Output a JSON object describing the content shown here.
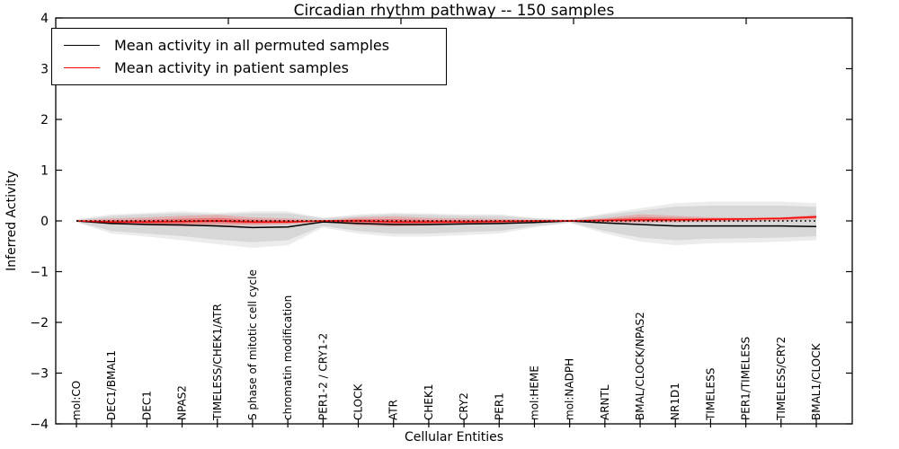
{
  "title": "Circadian rhythm pathway -- 150 samples",
  "axes": {
    "ylabel": "Inferred Activity",
    "xlabel": "Cellular Entities",
    "yticks": [
      4,
      3,
      2,
      1,
      0,
      -1,
      -2,
      -3,
      -4
    ],
    "ytick_labels": [
      "4",
      "3",
      "2",
      "1",
      "0",
      "−1",
      "−2",
      "−3",
      "−4"
    ],
    "ylim": [
      -4,
      4
    ]
  },
  "legend": {
    "items": [
      {
        "label": "Mean activity in all permuted samples",
        "color": "#000000"
      },
      {
        "label": "Mean activity in patient samples",
        "color": "#ff0000"
      }
    ]
  },
  "chart_data": {
    "type": "line",
    "title": "Circadian rhythm pathway -- 150 samples",
    "xlabel": "Cellular Entities",
    "ylabel": "Inferred Activity",
    "ylim": [
      -4,
      4
    ],
    "grid": false,
    "legend_position": "upper left",
    "categories": [
      "mol:CO",
      "DEC1/BMAL1",
      "DEC1",
      "NPAS2",
      "TIMELESS/CHEK1/ATR",
      "S phase of mitotic cell cycle",
      "chromatin modification",
      "PER1-2 / CRY1-2",
      "CLOCK",
      "ATR",
      "CHEK1",
      "CRY2",
      "PER1",
      "mol:HEME",
      "mol:NADPH",
      "ARNTL",
      "BMAL/CLOCK/NPAS2",
      "NR1D1",
      "TIMELESS",
      "PER1/TIMELESS",
      "TIMELESS/CRY2",
      "BMAL1/CLOCK"
    ],
    "series": [
      {
        "name": "Mean activity in all permuted samples",
        "color": "#000000",
        "style": "solid",
        "values": [
          0,
          -0.05,
          -0.07,
          -0.08,
          -0.1,
          -0.13,
          -0.12,
          -0.02,
          -0.05,
          -0.07,
          -0.07,
          -0.06,
          -0.05,
          -0.03,
          0,
          -0.04,
          -0.07,
          -0.1,
          -0.1,
          -0.1,
          -0.1,
          -0.11
        ]
      },
      {
        "name": "Mean activity in patient samples",
        "color": "#ff0000",
        "style": "solid",
        "values": [
          0,
          -0.02,
          -0.02,
          -0.01,
          0,
          -0.02,
          -0.02,
          0,
          0,
          -0.02,
          -0.02,
          -0.02,
          -0.01,
          0,
          0,
          0.01,
          0.02,
          0.02,
          0.03,
          0.04,
          0.05,
          0.08
        ]
      },
      {
        "name": "zero-reference",
        "color": "#000000",
        "style": "dotted",
        "values": [
          0,
          0,
          0,
          0,
          0,
          0,
          0,
          0,
          0,
          0,
          0,
          0,
          0,
          0,
          0,
          0,
          0,
          0,
          0,
          0,
          0,
          0
        ]
      }
    ],
    "bands": [
      {
        "name": "permuted-range-outer",
        "color": "#a8a8a8",
        "opacity": 0.22,
        "upper": [
          0.03,
          0.13,
          0.16,
          0.19,
          0.16,
          0.19,
          0.19,
          0.06,
          0.13,
          0.16,
          0.15,
          0.13,
          0.13,
          0.06,
          0.03,
          0.15,
          0.25,
          0.35,
          0.38,
          0.38,
          0.38,
          0.35
        ],
        "lower": [
          -0.03,
          -0.25,
          -0.31,
          -0.38,
          -0.46,
          -0.53,
          -0.48,
          -0.13,
          -0.25,
          -0.31,
          -0.31,
          -0.28,
          -0.25,
          -0.13,
          -0.04,
          -0.25,
          -0.41,
          -0.48,
          -0.44,
          -0.43,
          -0.41,
          -0.38
        ]
      },
      {
        "name": "permuted-range-inner",
        "color": "#b8b8b8",
        "opacity": 0.4,
        "upper": [
          0.02,
          0.1,
          0.13,
          0.15,
          0.13,
          0.15,
          0.15,
          0.05,
          0.1,
          0.13,
          0.12,
          0.1,
          0.1,
          0.05,
          0.02,
          0.12,
          0.2,
          0.28,
          0.3,
          0.3,
          0.3,
          0.28
        ],
        "lower": [
          -0.02,
          -0.2,
          -0.25,
          -0.3,
          -0.37,
          -0.42,
          -0.38,
          -0.1,
          -0.2,
          -0.25,
          -0.25,
          -0.22,
          -0.2,
          -0.1,
          -0.03,
          -0.2,
          -0.33,
          -0.38,
          -0.35,
          -0.34,
          -0.33,
          -0.3
        ]
      },
      {
        "name": "patient-range-outer",
        "color": "#ff0000",
        "opacity": 0.18,
        "upper": [
          0.01,
          0.05,
          0.07,
          0.1,
          0.12,
          0.07,
          0.05,
          0.01,
          0.07,
          0.09,
          0.06,
          0.05,
          0.04,
          0.02,
          0.01,
          0.06,
          0.13,
          0.1,
          0.07,
          0.06,
          0.07,
          0.12
        ],
        "lower": [
          -0.01,
          -0.07,
          -0.09,
          -0.11,
          -0.09,
          -0.09,
          -0.07,
          -0.02,
          -0.09,
          -0.11,
          -0.09,
          -0.07,
          -0.06,
          -0.03,
          -0.01,
          -0.04,
          -0.04,
          -0.03,
          -0.02,
          -0.01,
          0,
          0.03
        ]
      },
      {
        "name": "patient-range-inner",
        "color": "#ff0000",
        "opacity": 0.32,
        "upper": [
          0.005,
          0.015,
          0.025,
          0.045,
          0.06,
          0.025,
          0.015,
          0.005,
          0.035,
          0.035,
          0.02,
          0.015,
          0.015,
          0.01,
          0.005,
          0.035,
          0.075,
          0.06,
          0.05,
          0.05,
          0.06,
          0.1
        ],
        "lower": [
          -0.005,
          -0.045,
          -0.055,
          -0.06,
          -0.045,
          -0.055,
          -0.045,
          -0.01,
          -0.045,
          -0.065,
          -0.055,
          -0.045,
          -0.035,
          -0.015,
          -0.005,
          -0.015,
          -0.01,
          -0.005,
          0.005,
          0.015,
          0.025,
          0.055
        ]
      }
    ]
  }
}
